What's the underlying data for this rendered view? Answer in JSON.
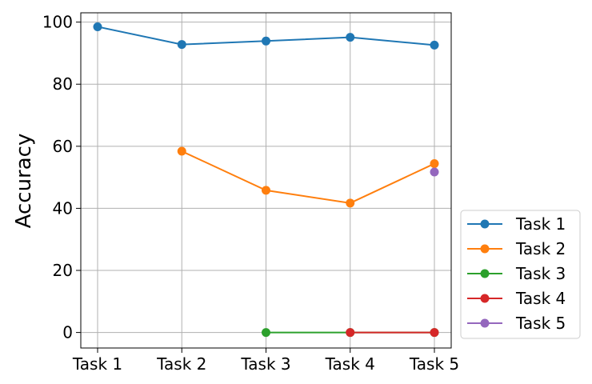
{
  "chart_data": {
    "type": "line",
    "title": "",
    "xlabel": "",
    "ylabel": "Accuracy",
    "categories": [
      "Task 1",
      "Task 2",
      "Task 3",
      "Task 4",
      "Task 5"
    ],
    "ylim": [
      -5,
      103
    ],
    "yticks": [
      0,
      20,
      40,
      60,
      80,
      100
    ],
    "grid": true,
    "legend_position": "outside right, bottom",
    "series": [
      {
        "name": "Task 1",
        "color": "#1f77b4",
        "values": [
          98.5,
          92.8,
          93.9,
          95.1,
          92.6
        ]
      },
      {
        "name": "Task 2",
        "color": "#ff7f0e",
        "values": [
          null,
          58.4,
          45.8,
          41.7,
          54.4
        ]
      },
      {
        "name": "Task 3",
        "color": "#2ca02c",
        "values": [
          null,
          null,
          0,
          0,
          0
        ]
      },
      {
        "name": "Task 4",
        "color": "#d62728",
        "values": [
          null,
          null,
          null,
          0,
          0
        ]
      },
      {
        "name": "Task 5",
        "color": "#9467bd",
        "values": [
          null,
          null,
          null,
          null,
          51.7
        ]
      }
    ]
  }
}
